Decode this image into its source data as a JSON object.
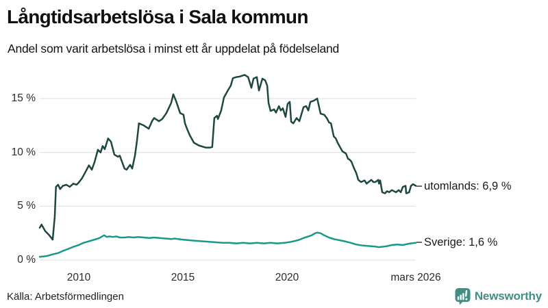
{
  "header": {
    "title": "Långtidsarbetslösa i Sala kommun",
    "subtitle": "Andel som varit arbetslösa i minst ett år uppdelat på födelseland"
  },
  "footer": {
    "source": "Källa: Arbetsförmedlingen",
    "brand": "Newsworthy",
    "brand_icon": "newsworthy-chart-bubble-icon"
  },
  "colors": {
    "line_foreign_born": "#1e4741",
    "line_sweden_born": "#17998a",
    "grid": "#e4e4e4",
    "brand_teal": "#418e85",
    "text": "#1a1a1a"
  },
  "chart_data": {
    "type": "line",
    "title": "Långtidsarbetslösa i Sala kommun",
    "subtitle": "Andel som varit arbetslösa i minst ett år uppdelat på födelseland",
    "unit": "%",
    "grid": true,
    "legend_position": "end-of-line-labels",
    "x_axis": {
      "range": [
        2008.13,
        2026.18
      ],
      "ticks": [
        {
          "value": 2010,
          "label": "2010"
        },
        {
          "value": 2015,
          "label": "2015"
        },
        {
          "value": 2020,
          "label": "2020"
        },
        {
          "value": 2026.18,
          "label": "mars 2026"
        }
      ]
    },
    "y_axis": {
      "range": [
        0,
        17.5
      ],
      "ticks": [
        {
          "value": 0,
          "label": "0 %"
        },
        {
          "value": 5,
          "label": "5 %"
        },
        {
          "value": 10,
          "label": "10 %"
        },
        {
          "value": 15,
          "label": "15 %"
        }
      ]
    },
    "series": [
      {
        "name": "utomlands",
        "end_label": "utomlands: 6,9 %",
        "last_value": 6.9,
        "color": "#1e4741",
        "points": [
          [
            2008.13,
            3.0
          ],
          [
            2008.22,
            3.3
          ],
          [
            2008.39,
            2.7
          ],
          [
            2008.59,
            2.3
          ],
          [
            2008.75,
            1.9
          ],
          [
            2008.85,
            4.0
          ],
          [
            2008.91,
            6.8
          ],
          [
            2009.01,
            7.0
          ],
          [
            2009.11,
            6.6
          ],
          [
            2009.24,
            6.9
          ],
          [
            2009.41,
            7.0
          ],
          [
            2009.57,
            6.8
          ],
          [
            2009.74,
            7.1
          ],
          [
            2009.9,
            7.0
          ],
          [
            2010.0,
            7.2
          ],
          [
            2010.16,
            7.6
          ],
          [
            2010.33,
            8.2
          ],
          [
            2010.49,
            8.8
          ],
          [
            2010.63,
            8.4
          ],
          [
            2010.76,
            9.1
          ],
          [
            2010.92,
            10.25
          ],
          [
            2011.05,
            10.0
          ],
          [
            2011.15,
            10.6
          ],
          [
            2011.25,
            10.3
          ],
          [
            2011.41,
            11.3
          ],
          [
            2011.55,
            11.0
          ],
          [
            2011.71,
            9.8
          ],
          [
            2011.88,
            9.6
          ],
          [
            2011.97,
            9.7
          ],
          [
            2012.2,
            8.5
          ],
          [
            2012.3,
            8.4
          ],
          [
            2012.47,
            8.85
          ],
          [
            2012.57,
            8.5
          ],
          [
            2012.7,
            9.7
          ],
          [
            2012.8,
            11.1
          ],
          [
            2012.89,
            12.7
          ],
          [
            2013.13,
            12.5
          ],
          [
            2013.36,
            12.2
          ],
          [
            2013.52,
            12.9
          ],
          [
            2013.62,
            13.2
          ],
          [
            2013.85,
            12.9
          ],
          [
            2014.01,
            13.1
          ],
          [
            2014.21,
            13.65
          ],
          [
            2014.44,
            14.6
          ],
          [
            2014.54,
            15.4
          ],
          [
            2014.67,
            14.8
          ],
          [
            2014.87,
            13.65
          ],
          [
            2015.03,
            13.5
          ],
          [
            2015.1,
            12.7
          ],
          [
            2015.2,
            12.2
          ],
          [
            2015.33,
            11.6
          ],
          [
            2015.53,
            10.9
          ],
          [
            2015.76,
            10.65
          ],
          [
            2016.09,
            10.45
          ],
          [
            2016.32,
            10.45
          ],
          [
            2016.41,
            10.5
          ],
          [
            2016.51,
            13.2
          ],
          [
            2016.64,
            13.4
          ],
          [
            2016.68,
            13.1
          ],
          [
            2016.84,
            13.9
          ],
          [
            2016.97,
            15.1
          ],
          [
            2017.17,
            15.8
          ],
          [
            2017.3,
            16.2
          ],
          [
            2017.4,
            16.9
          ],
          [
            2017.57,
            17.0
          ],
          [
            2017.73,
            17.05
          ],
          [
            2017.96,
            17.2
          ],
          [
            2018.13,
            17.0
          ],
          [
            2018.29,
            16.0
          ],
          [
            2018.39,
            16.85
          ],
          [
            2018.55,
            17.0
          ],
          [
            2018.65,
            15.75
          ],
          [
            2018.82,
            16.85
          ],
          [
            2018.95,
            16.7
          ],
          [
            2019.05,
            16.2
          ],
          [
            2019.11,
            14.6
          ],
          [
            2019.21,
            13.85
          ],
          [
            2019.38,
            14.0
          ],
          [
            2019.47,
            13.7
          ],
          [
            2019.61,
            14.3
          ],
          [
            2019.7,
            13.9
          ],
          [
            2019.8,
            14.1
          ],
          [
            2019.93,
            13.3
          ],
          [
            2020.03,
            14.5
          ],
          [
            2020.13,
            14.7
          ],
          [
            2020.2,
            12.85
          ],
          [
            2020.3,
            12.7
          ],
          [
            2020.46,
            13.2
          ],
          [
            2020.59,
            12.9
          ],
          [
            2020.79,
            14.2
          ],
          [
            2020.92,
            14.3
          ],
          [
            2021.02,
            13.9
          ],
          [
            2021.12,
            14.7
          ],
          [
            2021.28,
            14.8
          ],
          [
            2021.45,
            15.0
          ],
          [
            2021.61,
            13.6
          ],
          [
            2021.78,
            13.5
          ],
          [
            2021.91,
            13.2
          ],
          [
            2022.01,
            12.8
          ],
          [
            2022.11,
            12.7
          ],
          [
            2022.24,
            11.5
          ],
          [
            2022.34,
            11.3
          ],
          [
            2022.43,
            10.9
          ],
          [
            2022.57,
            10.4
          ],
          [
            2022.66,
            10.1
          ],
          [
            2022.83,
            9.9
          ],
          [
            2022.93,
            9.4
          ],
          [
            2022.99,
            9.35
          ],
          [
            2023.09,
            9.15
          ],
          [
            2023.22,
            8.5
          ],
          [
            2023.32,
            8.1
          ],
          [
            2023.42,
            7.45
          ],
          [
            2023.55,
            7.25
          ],
          [
            2023.72,
            7.4
          ],
          [
            2023.82,
            7.1
          ],
          [
            2023.91,
            7.25
          ],
          [
            2024.05,
            7.45
          ],
          [
            2024.14,
            7.25
          ],
          [
            2024.24,
            7.25
          ],
          [
            2024.38,
            7.45
          ],
          [
            2024.41,
            7.1
          ],
          [
            2024.47,
            7.4
          ],
          [
            2024.57,
            6.3
          ],
          [
            2024.7,
            6.2
          ],
          [
            2024.8,
            6.4
          ],
          [
            2024.9,
            6.3
          ],
          [
            2025.03,
            6.5
          ],
          [
            2025.13,
            6.4
          ],
          [
            2025.23,
            6.3
          ],
          [
            2025.36,
            6.5
          ],
          [
            2025.46,
            6.3
          ],
          [
            2025.56,
            6.8
          ],
          [
            2025.69,
            6.9
          ],
          [
            2025.72,
            6.2
          ],
          [
            2025.86,
            6.3
          ],
          [
            2025.95,
            6.9
          ],
          [
            2026.05,
            7.05
          ],
          [
            2026.18,
            6.9
          ]
        ]
      },
      {
        "name": "Sverige",
        "end_label": "Sverige: 1,6 %",
        "last_value": 1.6,
        "color": "#17998a",
        "points": [
          [
            2008.13,
            0.3
          ],
          [
            2008.36,
            0.35
          ],
          [
            2008.52,
            0.4
          ],
          [
            2008.78,
            0.55
          ],
          [
            2009.01,
            0.65
          ],
          [
            2009.24,
            0.85
          ],
          [
            2009.51,
            1.05
          ],
          [
            2009.77,
            1.25
          ],
          [
            2010.0,
            1.4
          ],
          [
            2010.23,
            1.6
          ],
          [
            2010.49,
            1.75
          ],
          [
            2010.76,
            1.9
          ],
          [
            2010.99,
            2.05
          ],
          [
            2011.22,
            2.3
          ],
          [
            2011.35,
            2.15
          ],
          [
            2011.48,
            2.2
          ],
          [
            2011.64,
            2.15
          ],
          [
            2011.81,
            2.2
          ],
          [
            2011.97,
            2.1
          ],
          [
            2012.2,
            2.1
          ],
          [
            2012.4,
            2.15
          ],
          [
            2012.63,
            2.1
          ],
          [
            2012.86,
            2.15
          ],
          [
            2013.13,
            2.1
          ],
          [
            2013.39,
            2.05
          ],
          [
            2013.62,
            2.1
          ],
          [
            2013.88,
            2.05
          ],
          [
            2014.18,
            2.0
          ],
          [
            2014.44,
            1.95
          ],
          [
            2014.61,
            2.0
          ],
          [
            2014.77,
            1.95
          ],
          [
            2015.0,
            1.9
          ],
          [
            2015.26,
            1.85
          ],
          [
            2015.59,
            1.8
          ],
          [
            2015.92,
            1.75
          ],
          [
            2016.25,
            1.7
          ],
          [
            2016.58,
            1.65
          ],
          [
            2016.91,
            1.6
          ],
          [
            2017.24,
            1.6
          ],
          [
            2017.57,
            1.55
          ],
          [
            2017.89,
            1.6
          ],
          [
            2018.22,
            1.55
          ],
          [
            2018.55,
            1.6
          ],
          [
            2018.88,
            1.55
          ],
          [
            2019.21,
            1.6
          ],
          [
            2019.54,
            1.55
          ],
          [
            2019.87,
            1.6
          ],
          [
            2020.2,
            1.7
          ],
          [
            2020.53,
            1.85
          ],
          [
            2020.86,
            2.1
          ],
          [
            2021.02,
            2.2
          ],
          [
            2021.18,
            2.3
          ],
          [
            2021.35,
            2.5
          ],
          [
            2021.45,
            2.55
          ],
          [
            2021.61,
            2.5
          ],
          [
            2021.78,
            2.3
          ],
          [
            2022.01,
            2.1
          ],
          [
            2022.24,
            1.95
          ],
          [
            2022.5,
            1.85
          ],
          [
            2022.76,
            1.75
          ],
          [
            2023.06,
            1.6
          ],
          [
            2023.32,
            1.45
          ],
          [
            2023.65,
            1.35
          ],
          [
            2023.98,
            1.3
          ],
          [
            2024.24,
            1.25
          ],
          [
            2024.41,
            1.2
          ],
          [
            2024.64,
            1.25
          ],
          [
            2024.8,
            1.3
          ],
          [
            2025.03,
            1.4
          ],
          [
            2025.3,
            1.45
          ],
          [
            2025.56,
            1.4
          ],
          [
            2025.79,
            1.5
          ],
          [
            2025.95,
            1.55
          ],
          [
            2026.18,
            1.6
          ]
        ]
      }
    ]
  }
}
